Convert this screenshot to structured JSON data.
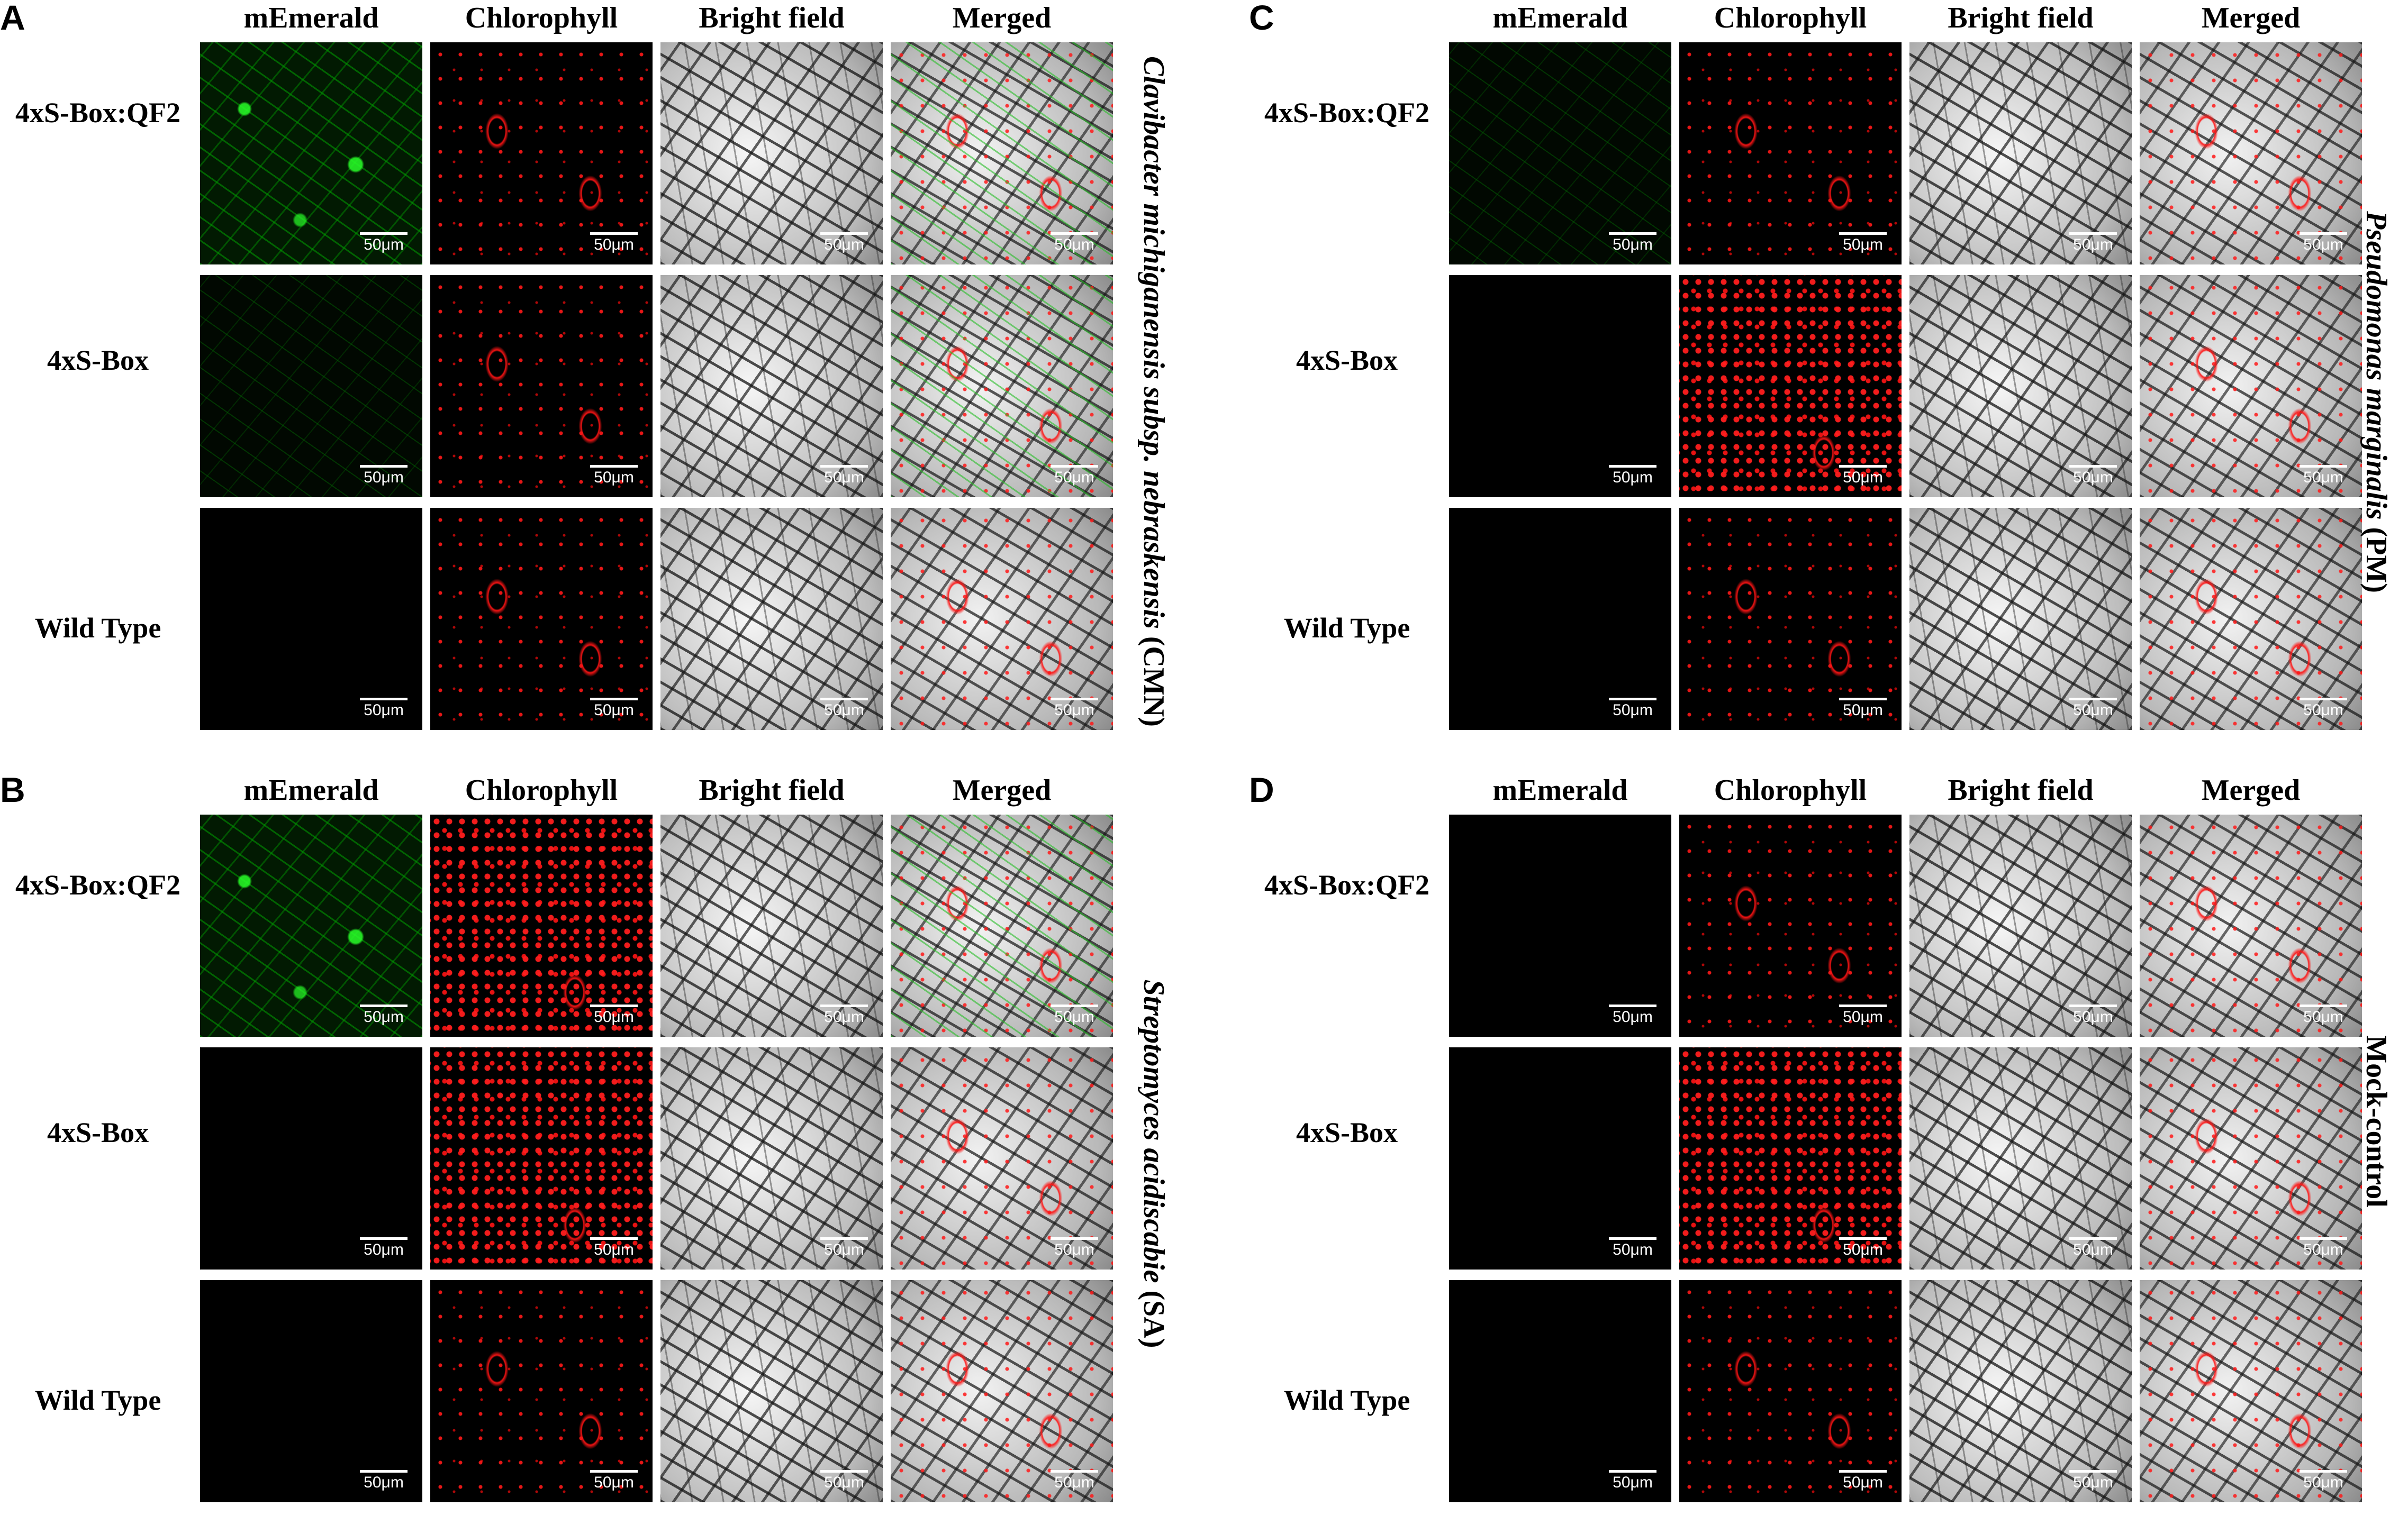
{
  "columns": [
    "mEmerald",
    "Chlorophyll",
    "Bright field",
    "Merged"
  ],
  "rows": [
    "4xS-Box:QF2",
    "4xS-Box",
    "Wild Type"
  ],
  "scale_bar": "50μm",
  "panels": {
    "A": {
      "letter": "A",
      "treatment_italic": "Clavibacter michiganensis subsp. nebraskensis",
      "treatment_abbrev": " (CMN)"
    },
    "B": {
      "letter": "B",
      "treatment_italic": "Streptomyces acidiscabie",
      "treatment_abbrev": " (SA)"
    },
    "C": {
      "letter": "C",
      "treatment_italic": "Pseudomonas marginalis",
      "treatment_abbrev": " (PM)"
    },
    "D": {
      "letter": "D",
      "treatment_italic": "",
      "treatment_abbrev": "Mock-control"
    }
  }
}
